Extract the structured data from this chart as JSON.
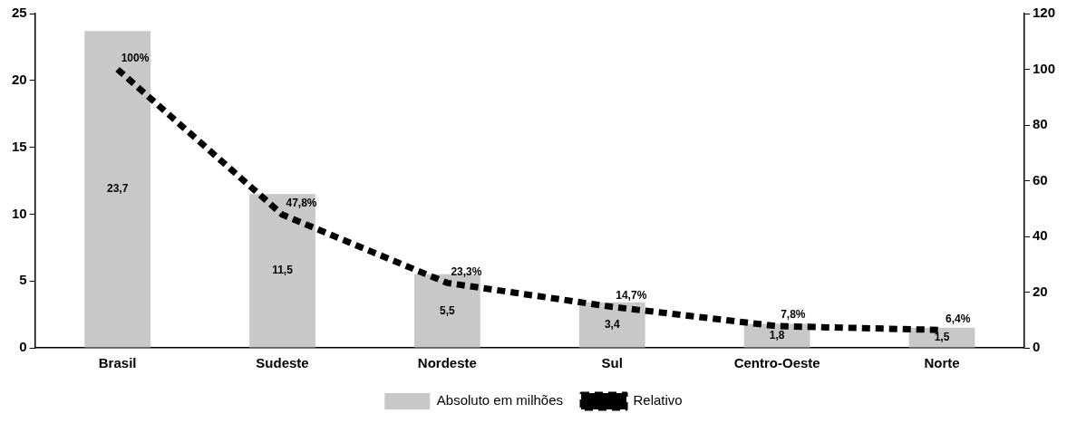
{
  "chart_data": {
    "type": "bar",
    "categories": [
      "Brasil",
      "Sudeste",
      "Nordeste",
      "Sul",
      "Centro-Oeste",
      "Norte"
    ],
    "series": [
      {
        "name": "Absoluto em milhões",
        "color": "#c8c8c8",
        "values": [
          23.7,
          11.5,
          5.5,
          3.4,
          1.8,
          1.5
        ],
        "value_labels": [
          "23,7",
          "11,5",
          "5,5",
          "3,4",
          "1,8",
          "1,5"
        ]
      },
      {
        "name": "Relativo",
        "type": "line",
        "axis": "y2",
        "color": "#000000",
        "line_style": "dashed",
        "values": [
          100,
          47.8,
          23.3,
          14.7,
          7.8,
          6.4
        ],
        "value_labels": [
          "100%",
          "47,8%",
          "23,3%",
          "14,7%",
          "7,8%",
          "6,4%"
        ]
      }
    ],
    "ylim": [
      0,
      25
    ],
    "yticks": [
      0,
      5,
      10,
      15,
      20,
      25
    ],
    "y2lim": [
      0,
      120
    ],
    "y2ticks": [
      0,
      20,
      40,
      60,
      80,
      100,
      120
    ],
    "legend": "bottom"
  }
}
